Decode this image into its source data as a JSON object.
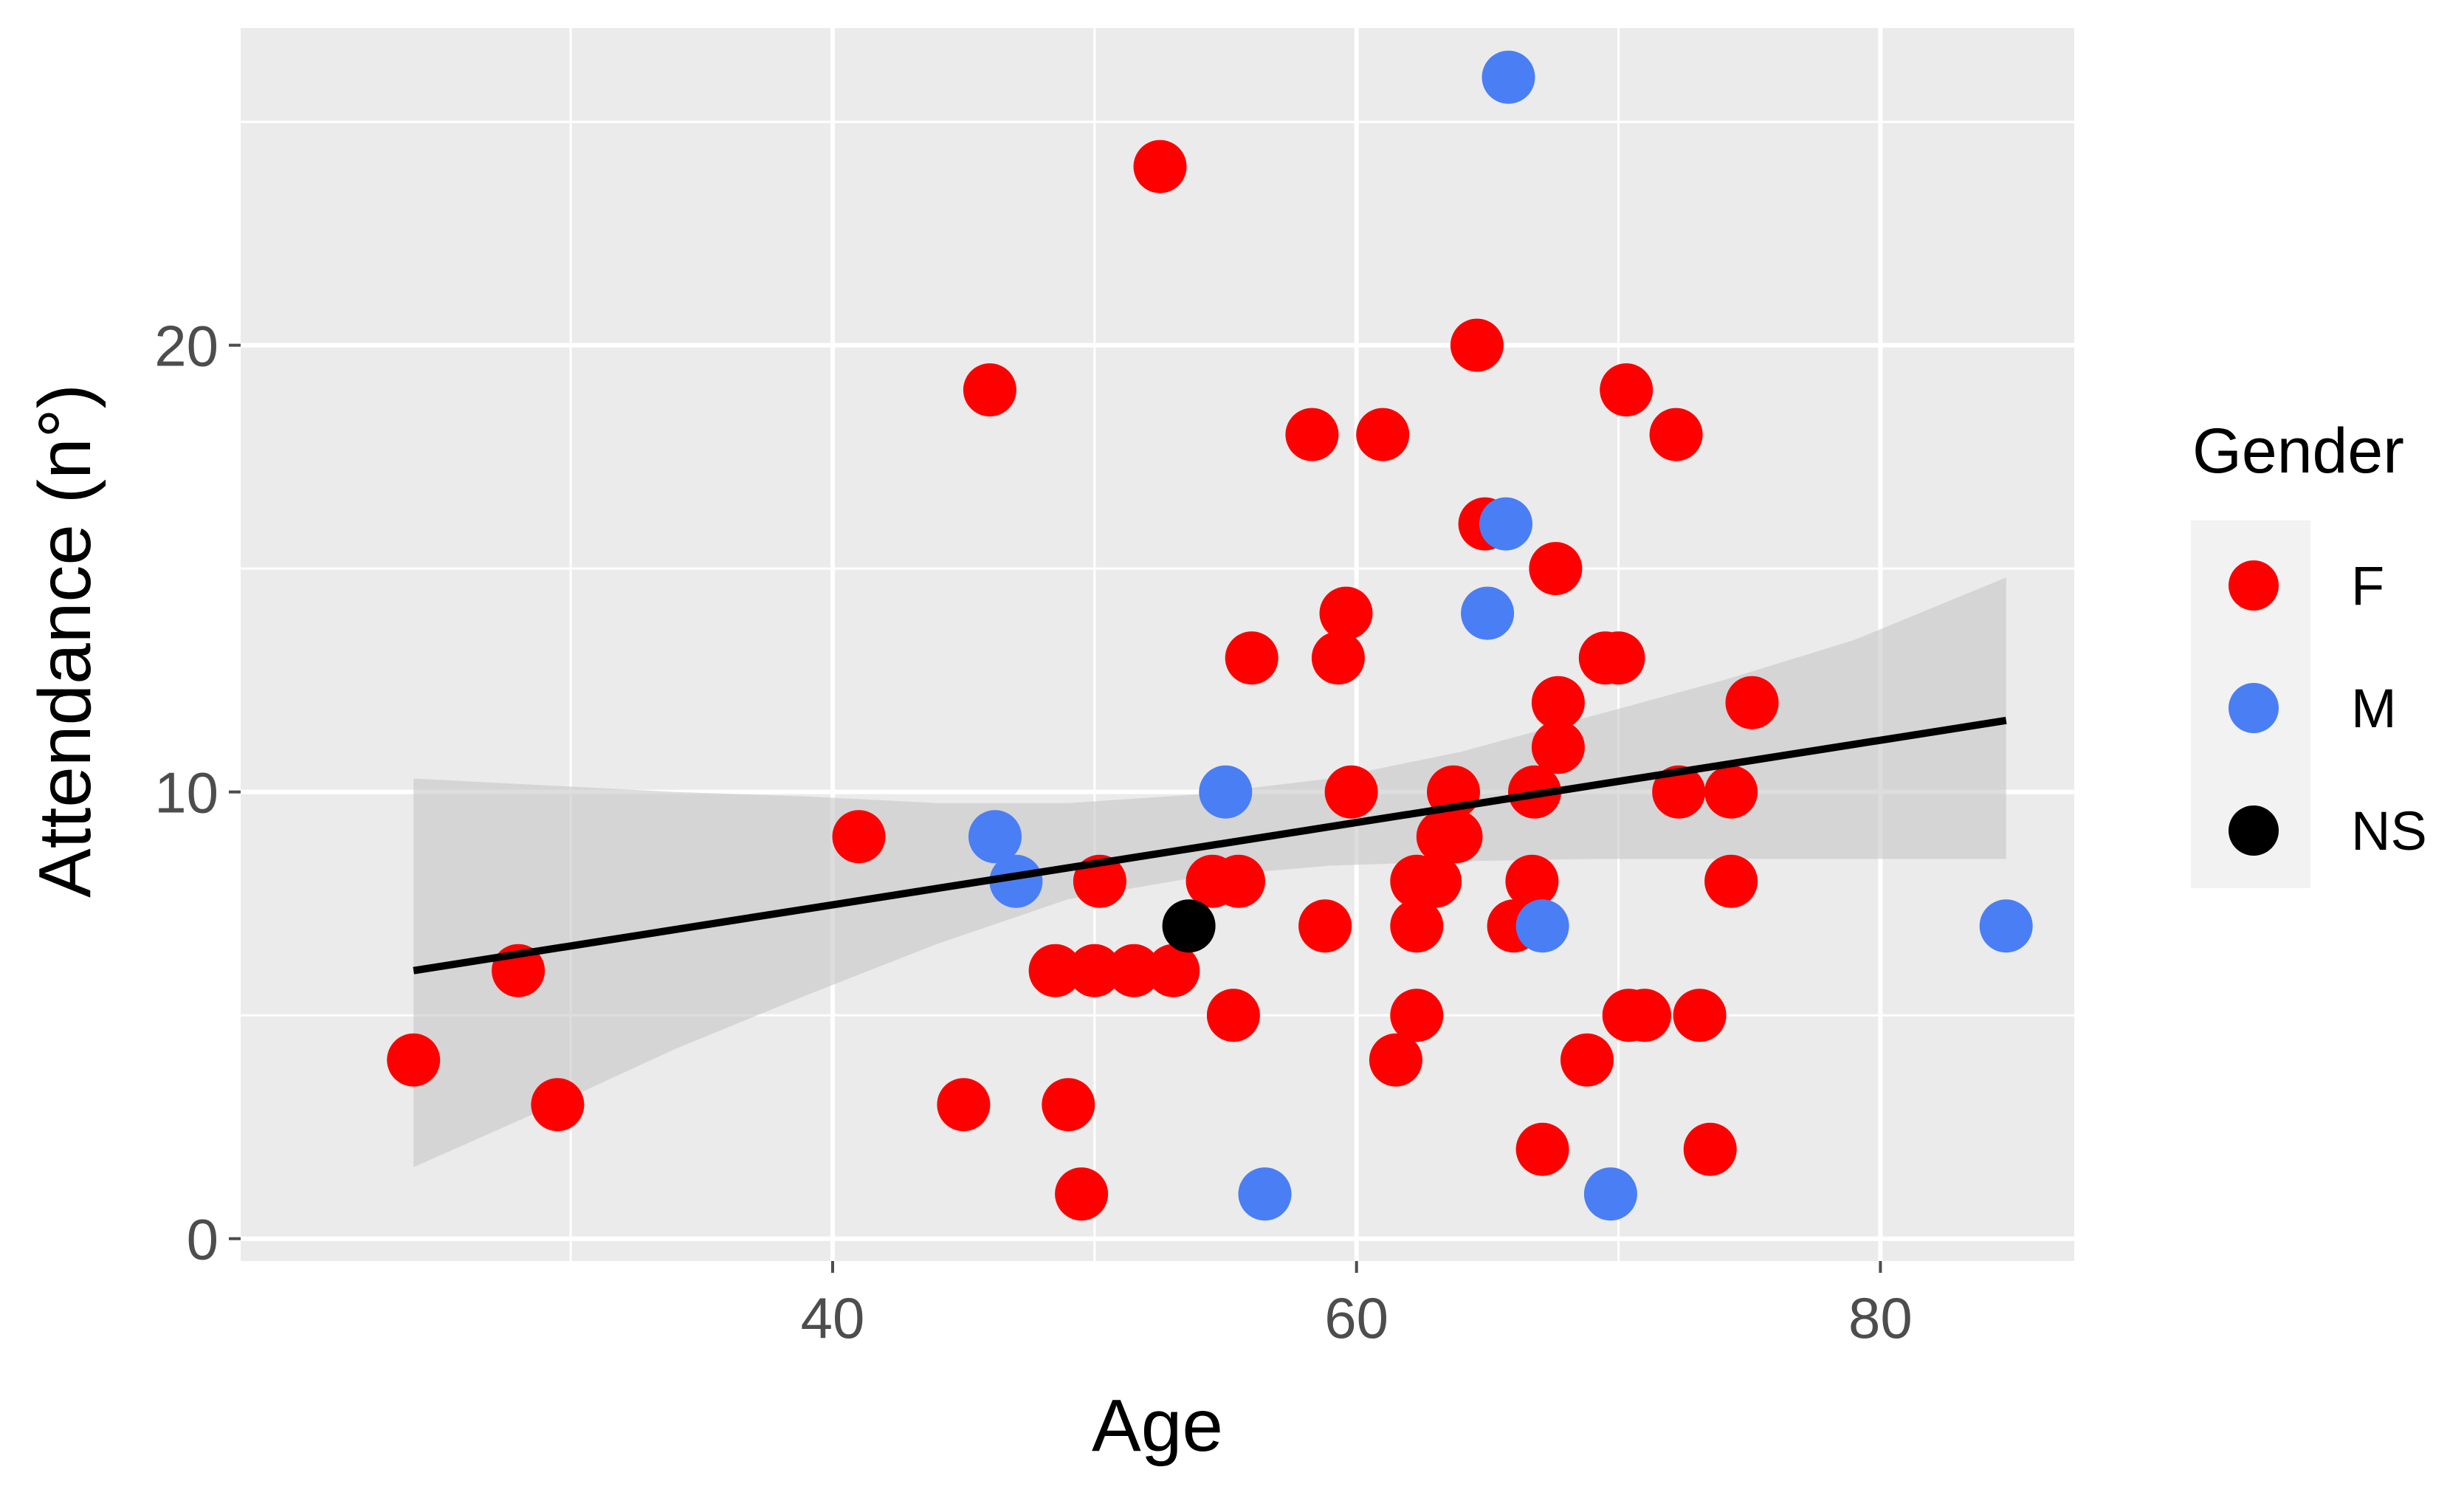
{
  "chart_data": {
    "type": "scatter",
    "title": "",
    "xlabel": "Age",
    "ylabel": "Attendance (n°)",
    "xlim": [
      17.4,
      87.4
    ],
    "ylim": [
      -0.5,
      27.1
    ],
    "x_ticks": [
      40,
      60,
      80
    ],
    "x_tick_labels": [
      "40",
      "60",
      "80"
    ],
    "y_ticks": [
      0,
      10,
      20
    ],
    "y_tick_labels": [
      "0",
      "10",
      "20"
    ],
    "x_minor_gridlines": [
      30,
      50,
      70
    ],
    "y_minor_gridlines": [
      5,
      15,
      25
    ],
    "grid": true,
    "legend": {
      "title": "Gender",
      "position": "right",
      "entries": [
        {
          "label": "F",
          "color": "#ff0000"
        },
        {
          "label": "M",
          "color": "#4a7ef5"
        },
        {
          "label": "NS",
          "color": "#000000"
        }
      ]
    },
    "series": [
      {
        "name": "F",
        "color": "#ff0000",
        "points": [
          [
            24,
            4
          ],
          [
            28,
            6
          ],
          [
            29.5,
            3
          ],
          [
            41,
            9
          ],
          [
            45,
            3
          ],
          [
            46,
            19
          ],
          [
            48.5,
            6
          ],
          [
            49,
            3
          ],
          [
            49.5,
            1
          ],
          [
            50,
            6
          ],
          [
            50.2,
            8
          ],
          [
            51.5,
            6
          ],
          [
            52.5,
            24
          ],
          [
            53,
            6
          ],
          [
            54.5,
            8
          ],
          [
            55.3,
            5
          ],
          [
            55.5,
            8
          ],
          [
            56,
            13
          ],
          [
            58.3,
            18
          ],
          [
            58.8,
            7
          ],
          [
            59.3,
            13
          ],
          [
            59.6,
            14
          ],
          [
            59.8,
            10
          ],
          [
            61,
            18
          ],
          [
            61.5,
            4
          ],
          [
            62.3,
            5
          ],
          [
            62.3,
            7
          ],
          [
            62.3,
            8
          ],
          [
            63,
            8
          ],
          [
            63.3,
            9
          ],
          [
            63.7,
            10
          ],
          [
            63.8,
            9
          ],
          [
            64.6,
            20
          ],
          [
            64.9,
            16
          ],
          [
            66,
            7
          ],
          [
            66.7,
            8
          ],
          [
            66.8,
            10
          ],
          [
            67.1,
            2
          ],
          [
            67.6,
            15
          ],
          [
            67.7,
            12
          ],
          [
            67.7,
            11
          ],
          [
            68.8,
            4
          ],
          [
            69.5,
            13
          ],
          [
            70,
            13
          ],
          [
            70.3,
            19
          ],
          [
            70.4,
            5
          ],
          [
            71,
            5
          ],
          [
            72.2,
            18
          ],
          [
            72.3,
            10
          ],
          [
            73.1,
            5
          ],
          [
            73.5,
            2
          ],
          [
            74.3,
            10
          ],
          [
            74.3,
            8
          ],
          [
            75.1,
            12
          ]
        ]
      },
      {
        "name": "M",
        "color": "#4a7ef5",
        "points": [
          [
            46.2,
            9
          ],
          [
            47,
            8
          ],
          [
            55,
            10
          ],
          [
            56.5,
            1
          ],
          [
            65,
            14
          ],
          [
            65.7,
            16
          ],
          [
            65.8,
            26
          ],
          [
            67.1,
            7
          ],
          [
            69.7,
            1
          ],
          [
            84.8,
            7
          ]
        ]
      },
      {
        "name": "NS",
        "color": "#000000",
        "points": [
          [
            53.6,
            7
          ]
        ]
      }
    ],
    "trend_line": {
      "type": "linear",
      "color": "#000000",
      "x": [
        24,
        84.8
      ],
      "y": [
        6,
        11.6
      ],
      "confidence_band": {
        "fill": "#c7c7c7",
        "x": [
          24,
          29,
          34,
          39,
          44,
          49,
          54,
          59,
          64,
          69,
          74,
          79,
          84.8
        ],
        "upper": [
          10.3,
          10.15,
          10.0,
          9.9,
          9.75,
          9.75,
          9.95,
          10.3,
          10.9,
          11.7,
          12.5,
          13.4,
          14.8
        ],
        "lower": [
          1.6,
          2.9,
          4.25,
          5.45,
          6.6,
          7.6,
          8.1,
          8.35,
          8.45,
          8.5,
          8.5,
          8.5,
          8.5
        ]
      }
    }
  }
}
